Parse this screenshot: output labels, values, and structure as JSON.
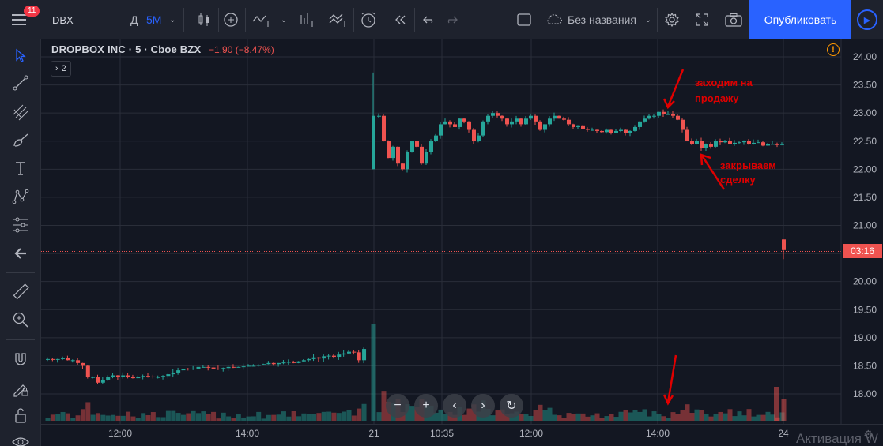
{
  "toolbar": {
    "notification_count": "11",
    "symbol": "DBX",
    "interval_d": "Д",
    "interval_5m": "5M",
    "layout_name": "Без названия",
    "publish_label": "Опубликовать"
  },
  "legend": {
    "name": "DROPBOX INC · 5 · Cboe BZX",
    "change": "−1.90 (−8.47%)",
    "collapsed_indicators": "2"
  },
  "annotations": {
    "sell": "заходим на продажу",
    "close": "закрываем сделку"
  },
  "countdown": "03:16",
  "watermark": "Активация W",
  "colors": {
    "up": "#26a69a",
    "down": "#ef5350",
    "arrow": "#e00000",
    "accent": "#2962ff"
  },
  "chart_data": {
    "type": "candlestick",
    "price_axis": {
      "ylim": [
        17.6,
        24.1
      ],
      "ticks": [
        "24.00",
        "23.50",
        "23.00",
        "22.50",
        "22.00",
        "21.50",
        "21.00",
        "20.50",
        "20.00",
        "19.50",
        "19.00",
        "18.50",
        "18.00"
      ]
    },
    "time_axis": {
      "ticks": [
        "12:00",
        "14:00",
        "21",
        "10:35",
        "12:00",
        "14:00",
        "24"
      ]
    },
    "last_price": 20.56,
    "session_1_closes": [
      18.62,
      18.61,
      18.62,
      18.64,
      18.6,
      18.6,
      18.55,
      18.5,
      18.3,
      18.3,
      18.2,
      18.25,
      18.3,
      18.33,
      18.3,
      18.33,
      18.3,
      18.28,
      18.3,
      18.32,
      18.31,
      18.3,
      18.3,
      18.32,
      18.35,
      18.38,
      18.42,
      18.45,
      18.44,
      18.45,
      18.48,
      18.48,
      18.47,
      18.45,
      18.44,
      18.46,
      18.48,
      18.47,
      18.48,
      18.49,
      18.5,
      18.5,
      18.52,
      18.53,
      18.55,
      18.53,
      18.55,
      18.56,
      18.57,
      18.55,
      18.58,
      18.6,
      18.62,
      18.65,
      18.63,
      18.67,
      18.68,
      18.66,
      18.7,
      18.72,
      18.75,
      18.74,
      18.6,
      18.8
    ],
    "session_2_closes": [
      22.95,
      22.5,
      22.2,
      22.4,
      22.1,
      22.0,
      22.3,
      22.5,
      22.4,
      22.1,
      22.3,
      22.5,
      22.6,
      22.8,
      22.85,
      22.8,
      22.75,
      22.9,
      22.85,
      22.7,
      22.5,
      22.6,
      22.85,
      22.95,
      23.0,
      22.95,
      22.9,
      22.8,
      22.85,
      22.9,
      22.8,
      22.9,
      22.95,
      22.85,
      22.7,
      22.8,
      22.9,
      22.95,
      22.9,
      22.88,
      22.8,
      22.75,
      22.78,
      22.72,
      22.7,
      22.7,
      22.68,
      22.66,
      22.7,
      22.65,
      22.68,
      22.7,
      22.65,
      22.68,
      22.75,
      22.85,
      22.9,
      22.95,
      22.95,
      23.02,
      22.98,
      22.98,
      22.95,
      22.88,
      22.7,
      22.5,
      22.45,
      22.5,
      22.38,
      22.45,
      22.4,
      22.5,
      22.48,
      22.5,
      22.45,
      22.47,
      22.48,
      22.5,
      22.45,
      22.47,
      22.48,
      22.42,
      22.45,
      22.45,
      22.43,
      22.45
    ]
  }
}
